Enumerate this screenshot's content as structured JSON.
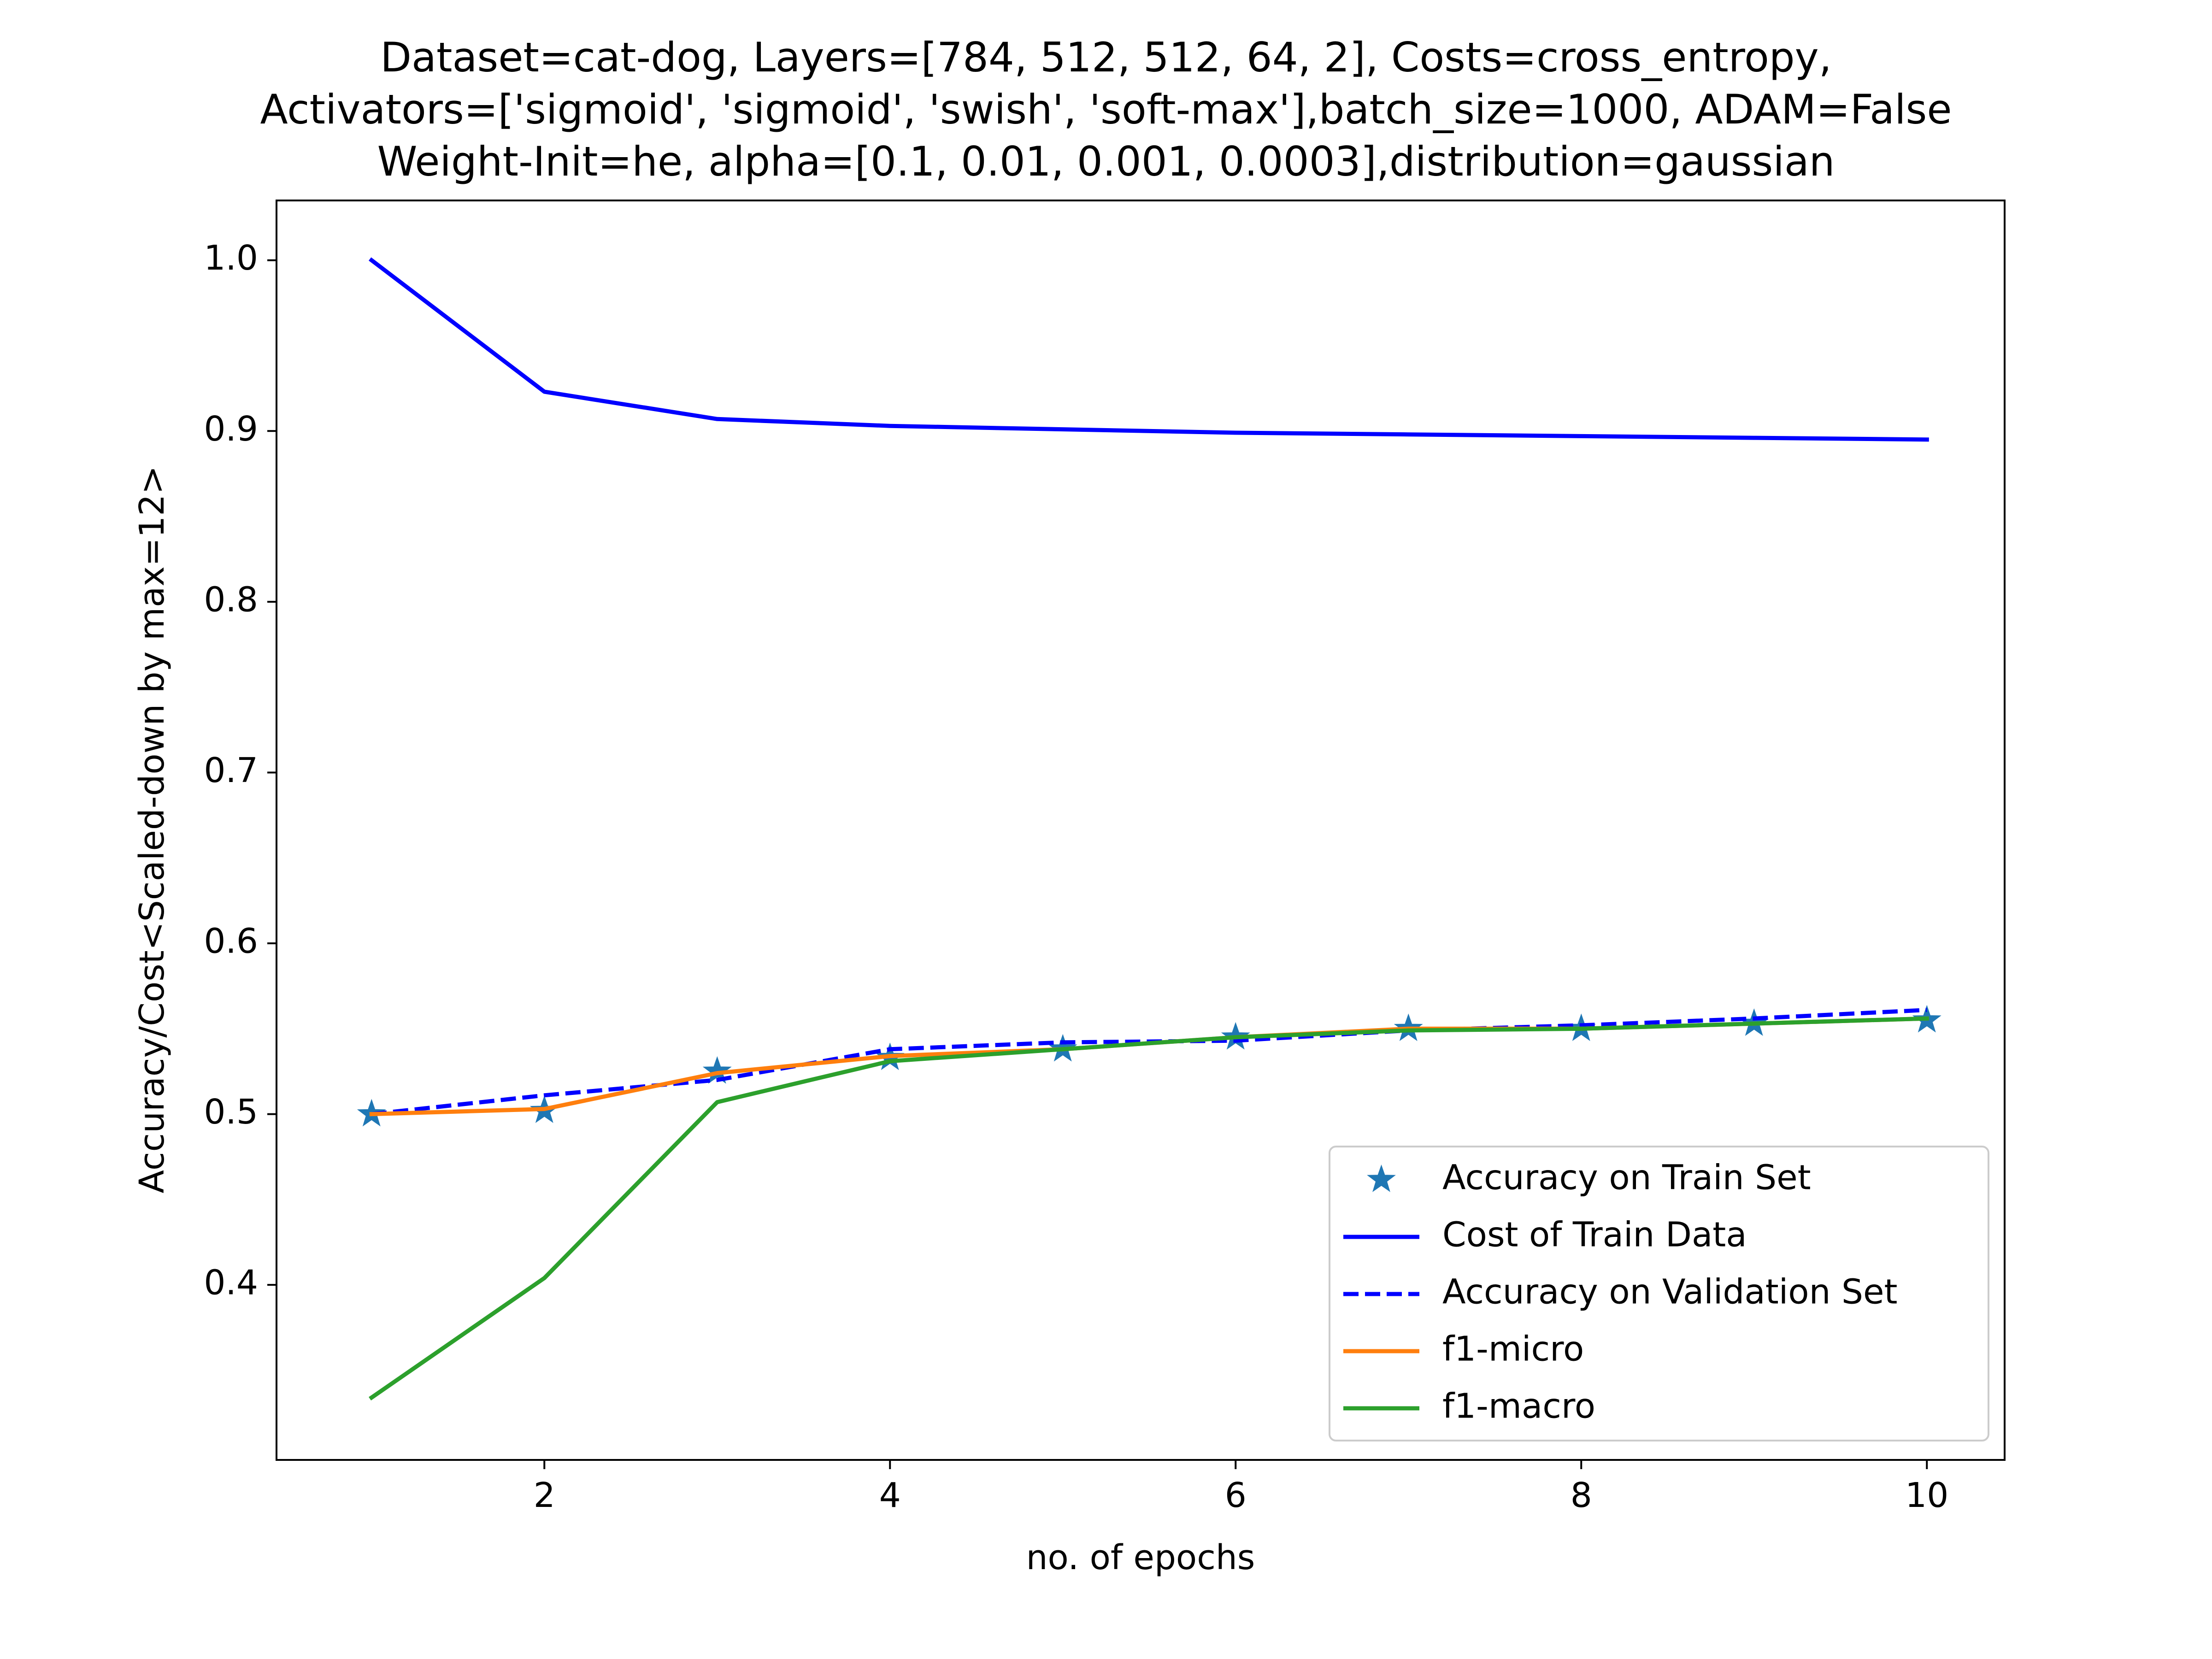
{
  "chart_data": {
    "type": "line",
    "title_lines": [
      "Dataset=cat-dog, Layers=[784, 512, 512, 64, 2], Costs=cross_entropy,",
      "Activators=['sigmoid', 'sigmoid', 'swish', 'soft-max'],batch_size=1000, ADAM=False",
      "Weight-Init=he, alpha=[0.1, 0.01, 0.001, 0.0003],distribution=gaussian"
    ],
    "xlabel": "no. of epochs",
    "ylabel": "Accuracy/Cost<Scaled-down by max=12>",
    "x": [
      1,
      2,
      3,
      4,
      5,
      6,
      7,
      8,
      9,
      10
    ],
    "xlim": [
      0.45,
      10.45
    ],
    "ylim": [
      0.2975,
      1.035
    ],
    "xticks": [
      2,
      4,
      6,
      8,
      10
    ],
    "xtick_labels": [
      "2",
      "4",
      "6",
      "8",
      "10"
    ],
    "yticks": [
      0.4,
      0.5,
      0.6,
      0.7,
      0.8,
      0.9,
      1.0
    ],
    "ytick_labels": [
      "0.4",
      "0.5",
      "0.6",
      "0.7",
      "0.8",
      "0.9",
      "1.0"
    ],
    "grid": false,
    "legend_position": "lower-right",
    "series": [
      {
        "name": "Accuracy on Train Set",
        "style": "markers",
        "marker": "star",
        "color": "#1f77b4",
        "values": [
          0.5,
          0.502,
          0.525,
          0.533,
          0.538,
          0.545,
          0.55,
          0.55,
          0.553,
          0.555
        ]
      },
      {
        "name": "Cost of Train Data",
        "style": "solid",
        "color": "#0000ff",
        "values": [
          1.0,
          0.923,
          0.907,
          0.903,
          0.901,
          0.899,
          0.898,
          0.897,
          0.896,
          0.895
        ]
      },
      {
        "name": "Accuracy on Validation Set",
        "style": "dashed",
        "color": "#0000ff",
        "values": [
          0.5,
          0.511,
          0.52,
          0.538,
          0.542,
          0.543,
          0.549,
          0.552,
          0.556,
          0.561
        ]
      },
      {
        "name": "f1-micro",
        "style": "solid",
        "color": "#ff7f0e",
        "values": [
          0.5,
          0.503,
          0.524,
          0.534,
          0.538,
          0.545,
          0.55,
          0.55,
          0.553,
          0.556
        ]
      },
      {
        "name": "f1-macro",
        "style": "solid",
        "color": "#2ca02c",
        "values": [
          0.334,
          0.404,
          0.507,
          0.531,
          0.538,
          0.545,
          0.549,
          0.55,
          0.553,
          0.556
        ]
      }
    ]
  }
}
